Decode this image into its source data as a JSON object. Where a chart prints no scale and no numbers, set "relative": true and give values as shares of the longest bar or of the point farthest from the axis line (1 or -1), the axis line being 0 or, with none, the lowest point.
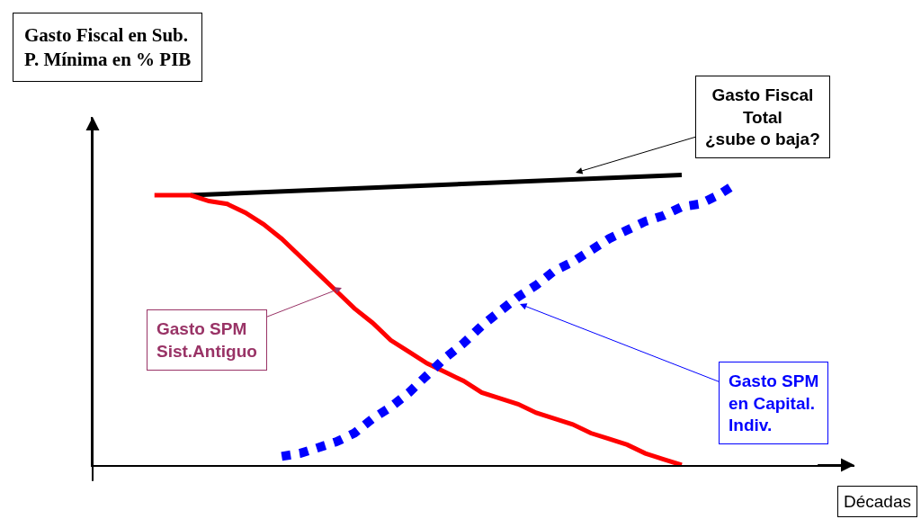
{
  "chart_data": {
    "type": "line",
    "relative": true,
    "categories": [
      null,
      null,
      null,
      null,
      null,
      null,
      null,
      null,
      null,
      null,
      null,
      null,
      null,
      null,
      null,
      null,
      null,
      null,
      null,
      null,
      null,
      null,
      null,
      null,
      null,
      null,
      null,
      null,
      null,
      null,
      null,
      null,
      null
    ],
    "series": [
      {
        "color": "#000000",
        "line_style": "solid",
        "values": [
          null,
          null,
          0.93,
          null,
          null,
          null,
          null,
          null,
          null,
          null,
          null,
          null,
          null,
          null,
          null,
          null,
          null,
          null,
          null,
          null,
          null,
          null,
          null,
          null,
          null,
          null,
          null,
          null,
          null,
          1.0,
          null,
          null,
          null
        ]
      },
      {
        "color": "#ff0000",
        "line_style": "solid",
        "values": [
          0.93,
          0.93,
          0.93,
          0.91,
          0.9,
          0.87,
          0.83,
          0.78,
          0.72,
          0.66,
          0.6,
          0.54,
          0.49,
          0.43,
          0.39,
          0.35,
          0.32,
          0.29,
          0.25,
          0.23,
          0.21,
          0.18,
          0.16,
          0.14,
          0.11,
          0.09,
          0.07,
          0.04,
          0.02,
          0,
          null,
          null,
          null
        ]
      },
      {
        "color": "#0000ff",
        "line_style": "dotted",
        "values": [
          null,
          null,
          null,
          null,
          null,
          null,
          null,
          0.03,
          0.04,
          0.06,
          0.08,
          0.11,
          0.16,
          0.2,
          0.25,
          0.31,
          0.37,
          0.42,
          0.48,
          0.53,
          0.58,
          0.62,
          0.67,
          0.7,
          0.74,
          0.78,
          0.81,
          0.84,
          0.86,
          0.89,
          0.9,
          0.93,
          0.97
        ]
      }
    ],
    "annotations": [
      "Gasto Fiscal en Sub.\nP. Mínima en % PIB",
      "Gasto Fiscal\nTotal\n¿sube o baja?",
      "Gasto SPM\nSist.Antiguo",
      "Gasto SPM\nen Capital.\nIndiv.",
      "Décadas"
    ],
    "legend": false
  }
}
